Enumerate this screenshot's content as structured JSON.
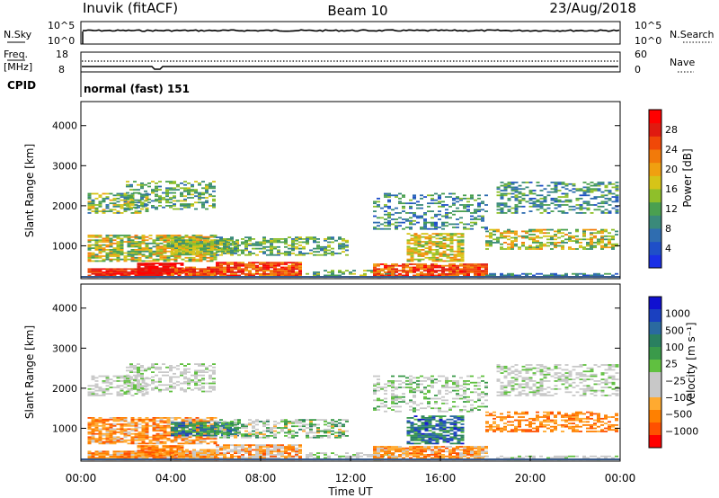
{
  "header": {
    "title": "Inuvik (fitACF)",
    "beam": "Beam 10",
    "date": "23/Aug/2018"
  },
  "top_panels": {
    "nsky": {
      "label": "N.Sky",
      "ticks": [
        "10^5",
        "10^0"
      ]
    },
    "nsearch": {
      "label": "N.Search",
      "ticks": [
        "10^5",
        "10^0"
      ]
    },
    "freq": {
      "label_top": "Freq.",
      "label_unit": "[MHz]",
      "ticks": [
        "18",
        "8"
      ]
    },
    "nave": {
      "label": "Nave",
      "ticks": [
        "60",
        "0"
      ]
    },
    "cpid": {
      "label": "CPID",
      "value": "normal (fast) 151"
    }
  },
  "colors": {
    "power_scale": [
      "#1a2fe6",
      "#1f4fc8",
      "#2f6db0",
      "#3a8a7a",
      "#4aa050",
      "#8fbf2a",
      "#d6c418",
      "#f0a010",
      "#f27a0a",
      "#f04808",
      "#e01a10",
      "#ff0000"
    ],
    "velocity_scale": [
      "#ff0000",
      "#ff5000",
      "#ff8000",
      "#ffaa30",
      "#c8c8c8",
      "#c8c8c8",
      "#60c040",
      "#3a9a4a",
      "#2a8060",
      "#2a6aa0",
      "#1a40c0",
      "#1010d0"
    ]
  },
  "chart_data": [
    {
      "type": "heatmap",
      "name": "power",
      "ylabel": "Slant Range [km]",
      "ylim": [
        180,
        4600
      ],
      "yticks": [
        "1000",
        "2000",
        "3000",
        "4000"
      ],
      "xlim": [
        0,
        24
      ],
      "colorbar": {
        "label": "Power [dB]",
        "range": [
          0,
          32
        ],
        "ticks": [
          "4",
          "8",
          "12",
          "16",
          "20",
          "24",
          "28"
        ]
      }
    },
    {
      "type": "heatmap",
      "name": "velocity",
      "ylabel": "Slant Range [km]",
      "ylim": [
        180,
        4600
      ],
      "yticks": [
        "1000",
        "2000",
        "3000",
        "4000"
      ],
      "xlim": [
        0,
        24
      ],
      "xlabel": "Time UT",
      "xticks": [
        "00:00",
        "04:00",
        "08:00",
        "12:00",
        "16:00",
        "20:00",
        "00:00"
      ],
      "colorbar": {
        "label": "Velocity [m s⁻¹]",
        "ticks": [
          "1000",
          "500",
          "100",
          "25",
          "−25",
          "−100",
          "−500",
          "−1000"
        ]
      }
    }
  ]
}
